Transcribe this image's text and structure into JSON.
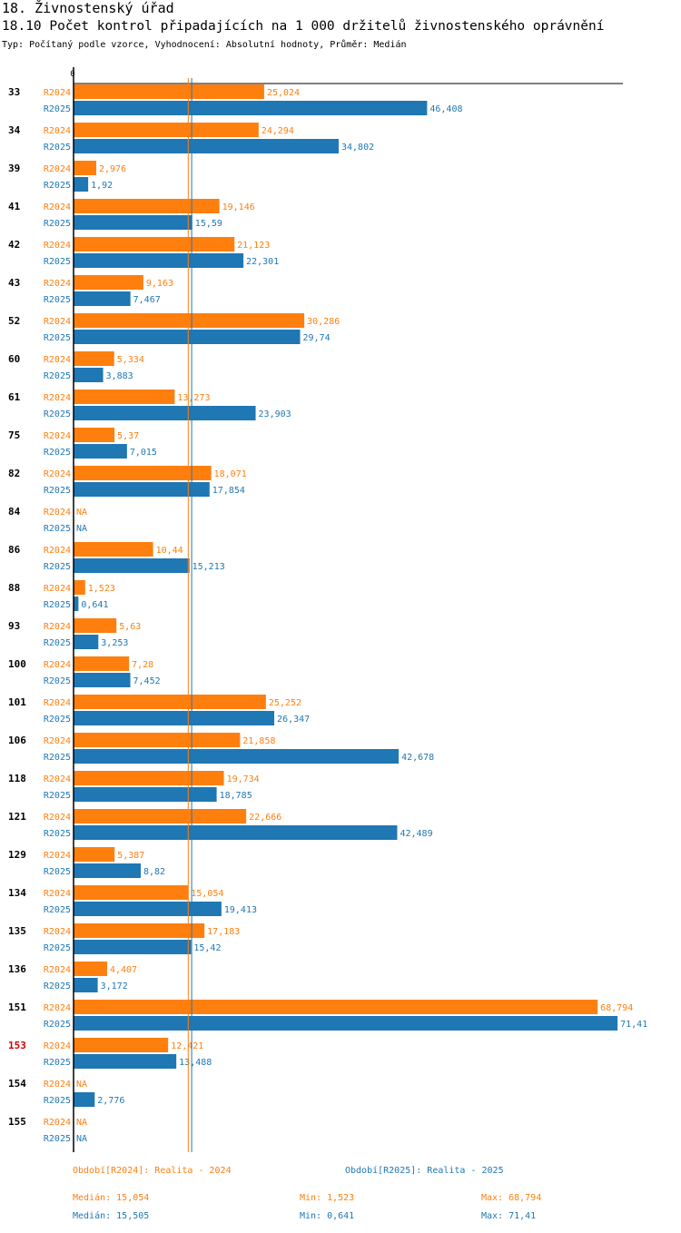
{
  "header": {
    "title": "18. Živnostenský úřad",
    "subtitle": "18.10 Počet kontrol připadajících na 1 000 držitelů živnostenského oprávnění",
    "type_line": "Typ: Počítaný podle vzorce, Vyhodnocení: Absolutní hodnoty, Průměr: Medián"
  },
  "colors": {
    "r2024": "#ff7f0e",
    "r2025": "#1f77b4",
    "highlight": "#cc0000",
    "axis": "#000000"
  },
  "chart_data": {
    "type": "bar",
    "orientation": "horizontal",
    "x_tick_label": "0",
    "xlim": [
      0,
      71.41
    ],
    "categories": [
      "33",
      "34",
      "39",
      "41",
      "42",
      "43",
      "52",
      "60",
      "61",
      "75",
      "82",
      "84",
      "86",
      "88",
      "93",
      "100",
      "101",
      "106",
      "118",
      "121",
      "129",
      "134",
      "135",
      "136",
      "151",
      "153",
      "154",
      "155"
    ],
    "highlighted_category": "153",
    "series": [
      {
        "name": "R2024",
        "values": [
          25.024,
          24.294,
          2.976,
          19.146,
          21.123,
          9.163,
          30.286,
          5.334,
          13.273,
          5.37,
          18.071,
          null,
          10.44,
          1.523,
          5.63,
          7.28,
          25.252,
          21.858,
          19.734,
          22.666,
          5.387,
          15.054,
          17.183,
          4.407,
          68.794,
          12.421,
          null,
          null
        ],
        "labels": [
          "25,024",
          "24,294",
          "2,976",
          "19,146",
          "21,123",
          "9,163",
          "30,286",
          "5,334",
          "13,273",
          "5,37",
          "18,071",
          "NA",
          "10,44",
          "1,523",
          "5,63",
          "7,28",
          "25,252",
          "21,858",
          "19,734",
          "22,666",
          "5,387",
          "15,054",
          "17,183",
          "4,407",
          "68,794",
          "12,421",
          "NA",
          "NA"
        ]
      },
      {
        "name": "R2025",
        "values": [
          46.408,
          34.802,
          1.92,
          15.59,
          22.301,
          7.467,
          29.74,
          3.883,
          23.903,
          7.015,
          17.854,
          null,
          15.213,
          0.641,
          3.253,
          7.452,
          26.347,
          42.678,
          18.785,
          42.489,
          8.82,
          19.413,
          15.42,
          3.172,
          71.41,
          13.488,
          2.776,
          null
        ],
        "labels": [
          "46,408",
          "34,802",
          "1,92",
          "15,59",
          "22,301",
          "7,467",
          "29,74",
          "3,883",
          "23,903",
          "7,015",
          "17,854",
          "NA",
          "15,213",
          "0,641",
          "3,253",
          "7,452",
          "26,347",
          "42,678",
          "18,785",
          "42,489",
          "8,82",
          "19,413",
          "15,42",
          "3,172",
          "71,41",
          "13,488",
          "2,776",
          "NA"
        ]
      }
    ],
    "median_lines": [
      {
        "series": "R2024",
        "value": 15.054
      },
      {
        "series": "R2025",
        "value": 15.505
      }
    ]
  },
  "footer": {
    "legend_r2024": "Období[R2024]: Realita - 2024",
    "legend_r2025": "Období[R2025]: Realita - 2025",
    "r2024": {
      "median": "Medián: 15,054",
      "min": "Min: 1,523",
      "max": "Max: 68,794"
    },
    "r2025": {
      "median": "Medián: 15,505",
      "min": "Min: 0,641",
      "max": "Max: 71,41"
    }
  }
}
